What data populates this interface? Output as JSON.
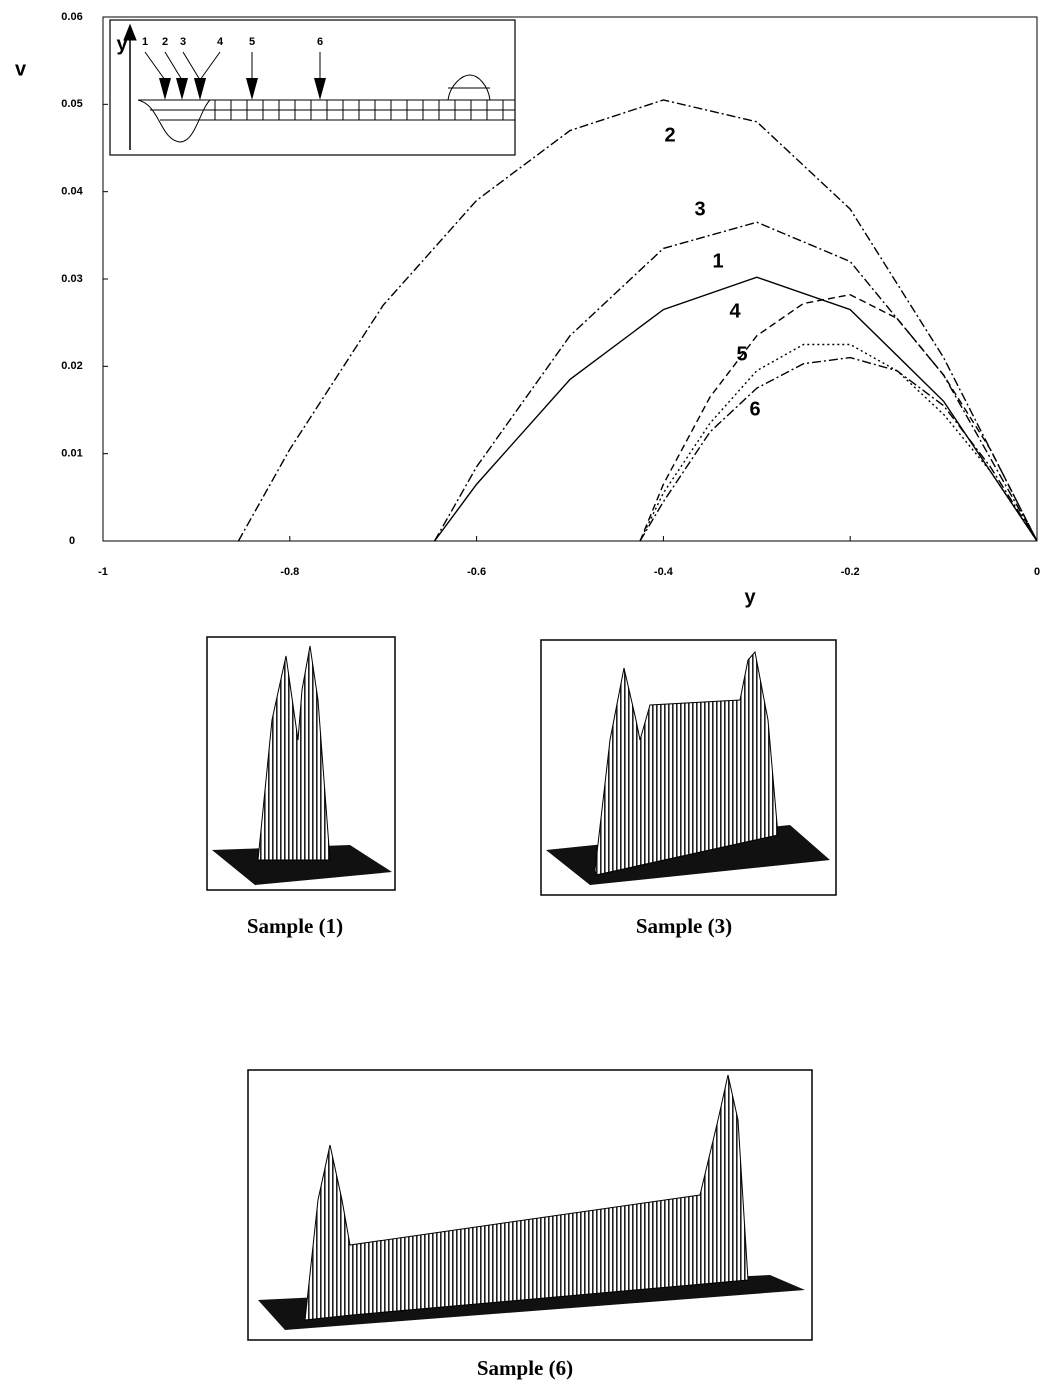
{
  "chart_data": {
    "type": "line",
    "x_label": "y",
    "y_label": "v",
    "xlim": [
      -1,
      0
    ],
    "ylim": [
      0,
      0.06
    ],
    "xticks": [
      -1,
      -0.8,
      -0.6,
      -0.4,
      -0.2,
      0
    ],
    "yticks": [
      0,
      0.01,
      0.02,
      0.03,
      0.04,
      0.05,
      0.06
    ],
    "series": [
      {
        "name": "1",
        "color": "#000000",
        "line_style": "solid",
        "x": [
          -0.645,
          -0.6,
          -0.5,
          -0.4,
          -0.3,
          -0.2,
          -0.1,
          0
        ],
        "values": [
          0,
          0.0065,
          0.0185,
          0.0265,
          0.0302,
          0.0265,
          0.016,
          0
        ]
      },
      {
        "name": "2",
        "color": "#000000",
        "line_style": "dashdot",
        "x": [
          -0.855,
          -0.8,
          -0.7,
          -0.6,
          -0.5,
          -0.4,
          -0.3,
          -0.2,
          -0.1,
          0
        ],
        "values": [
          0,
          0.0105,
          0.027,
          0.039,
          0.047,
          0.0505,
          0.048,
          0.038,
          0.021,
          0
        ]
      },
      {
        "name": "3",
        "color": "#000000",
        "line_style": "dashdot",
        "x": [
          -0.645,
          -0.6,
          -0.5,
          -0.4,
          -0.3,
          -0.2,
          -0.1,
          0
        ],
        "values": [
          0,
          0.0085,
          0.0235,
          0.0335,
          0.0365,
          0.032,
          0.019,
          0
        ]
      },
      {
        "name": "4",
        "color": "#000000",
        "line_style": "dashed",
        "x": [
          -0.425,
          -0.4,
          -0.35,
          -0.3,
          -0.25,
          -0.2,
          -0.15,
          -0.1,
          -0.05,
          0
        ],
        "values": [
          0,
          0.0065,
          0.0165,
          0.0235,
          0.0272,
          0.0282,
          0.0255,
          0.019,
          0.0105,
          0
        ]
      },
      {
        "name": "5",
        "color": "#000000",
        "line_style": "dotted",
        "x": [
          -0.425,
          -0.4,
          -0.35,
          -0.3,
          -0.25,
          -0.2,
          -0.15,
          -0.1,
          -0.05,
          0
        ],
        "values": [
          0,
          0.0055,
          0.0135,
          0.0195,
          0.0225,
          0.0225,
          0.0195,
          0.0145,
          0.008,
          0
        ]
      },
      {
        "name": "6",
        "color": "#000000",
        "line_style": "dashdot",
        "x": [
          -0.425,
          -0.4,
          -0.35,
          -0.3,
          -0.25,
          -0.2,
          -0.15,
          -0.1,
          -0.05,
          0
        ],
        "values": [
          0,
          0.0045,
          0.0125,
          0.0175,
          0.0203,
          0.021,
          0.0195,
          0.0155,
          0.0085,
          0
        ]
      }
    ]
  },
  "inset": {
    "axis_label": "y",
    "markers": [
      "1",
      "2",
      "3",
      "4",
      "5",
      "6"
    ]
  },
  "samples": [
    {
      "caption": "Sample (1)"
    },
    {
      "caption": "Sample (3)"
    },
    {
      "caption": "Sample (6)"
    }
  ]
}
